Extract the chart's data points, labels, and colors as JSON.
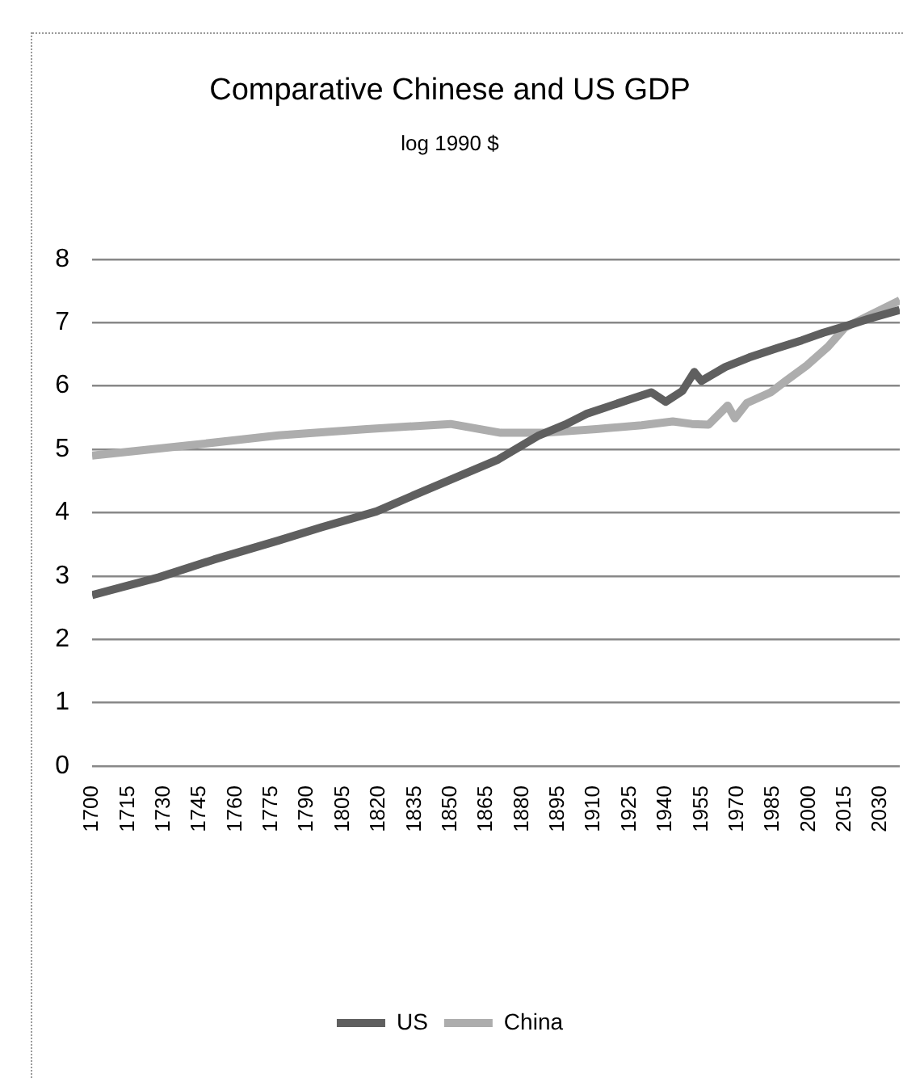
{
  "chart_data": {
    "type": "line",
    "title": "Comparative Chinese and US GDP",
    "subtitle": "log 1990 $",
    "xlim": [
      1700,
      2038
    ],
    "xticks": [
      1700,
      1715,
      1730,
      1745,
      1760,
      1775,
      1790,
      1805,
      1820,
      1835,
      1850,
      1865,
      1880,
      1895,
      1910,
      1925,
      1940,
      1955,
      1970,
      1985,
      2000,
      2015,
      2030
    ],
    "ylim": [
      0,
      8
    ],
    "yticks": [
      0,
      1,
      2,
      3,
      4,
      5,
      6,
      7,
      8
    ],
    "grid": "y",
    "legend": "bottom",
    "series": [
      {
        "name": "US",
        "color": "#5f5f5f",
        "x": [
          1700,
          1728,
          1751,
          1778,
          1796,
          1819,
          1835,
          1850,
          1870,
          1887,
          1898,
          1907,
          1918,
          1926,
          1934,
          1940,
          1947,
          1952,
          1955,
          1965,
          1975,
          1987,
          1997,
          2006,
          2015,
          2025,
          2038
        ],
        "values": [
          2.7,
          2.98,
          3.26,
          3.56,
          3.77,
          4.02,
          4.28,
          4.52,
          4.84,
          5.22,
          5.39,
          5.56,
          5.7,
          5.8,
          5.9,
          5.75,
          5.92,
          6.22,
          6.08,
          6.3,
          6.45,
          6.6,
          6.72,
          6.84,
          6.94,
          7.06,
          7.2
        ]
      },
      {
        "name": "China",
        "color": "#adadad",
        "x": [
          1700,
          1740,
          1778,
          1815,
          1850,
          1871,
          1889,
          1911,
          1930,
          1943,
          1951,
          1958,
          1966,
          1969,
          1974,
          1984,
          1990,
          1999,
          2008,
          2015,
          2024,
          2038
        ],
        "values": [
          4.9,
          5.06,
          5.22,
          5.32,
          5.4,
          5.26,
          5.26,
          5.32,
          5.38,
          5.44,
          5.4,
          5.39,
          5.69,
          5.49,
          5.73,
          5.9,
          6.07,
          6.32,
          6.62,
          6.92,
          7.09,
          7.35
        ]
      }
    ]
  }
}
